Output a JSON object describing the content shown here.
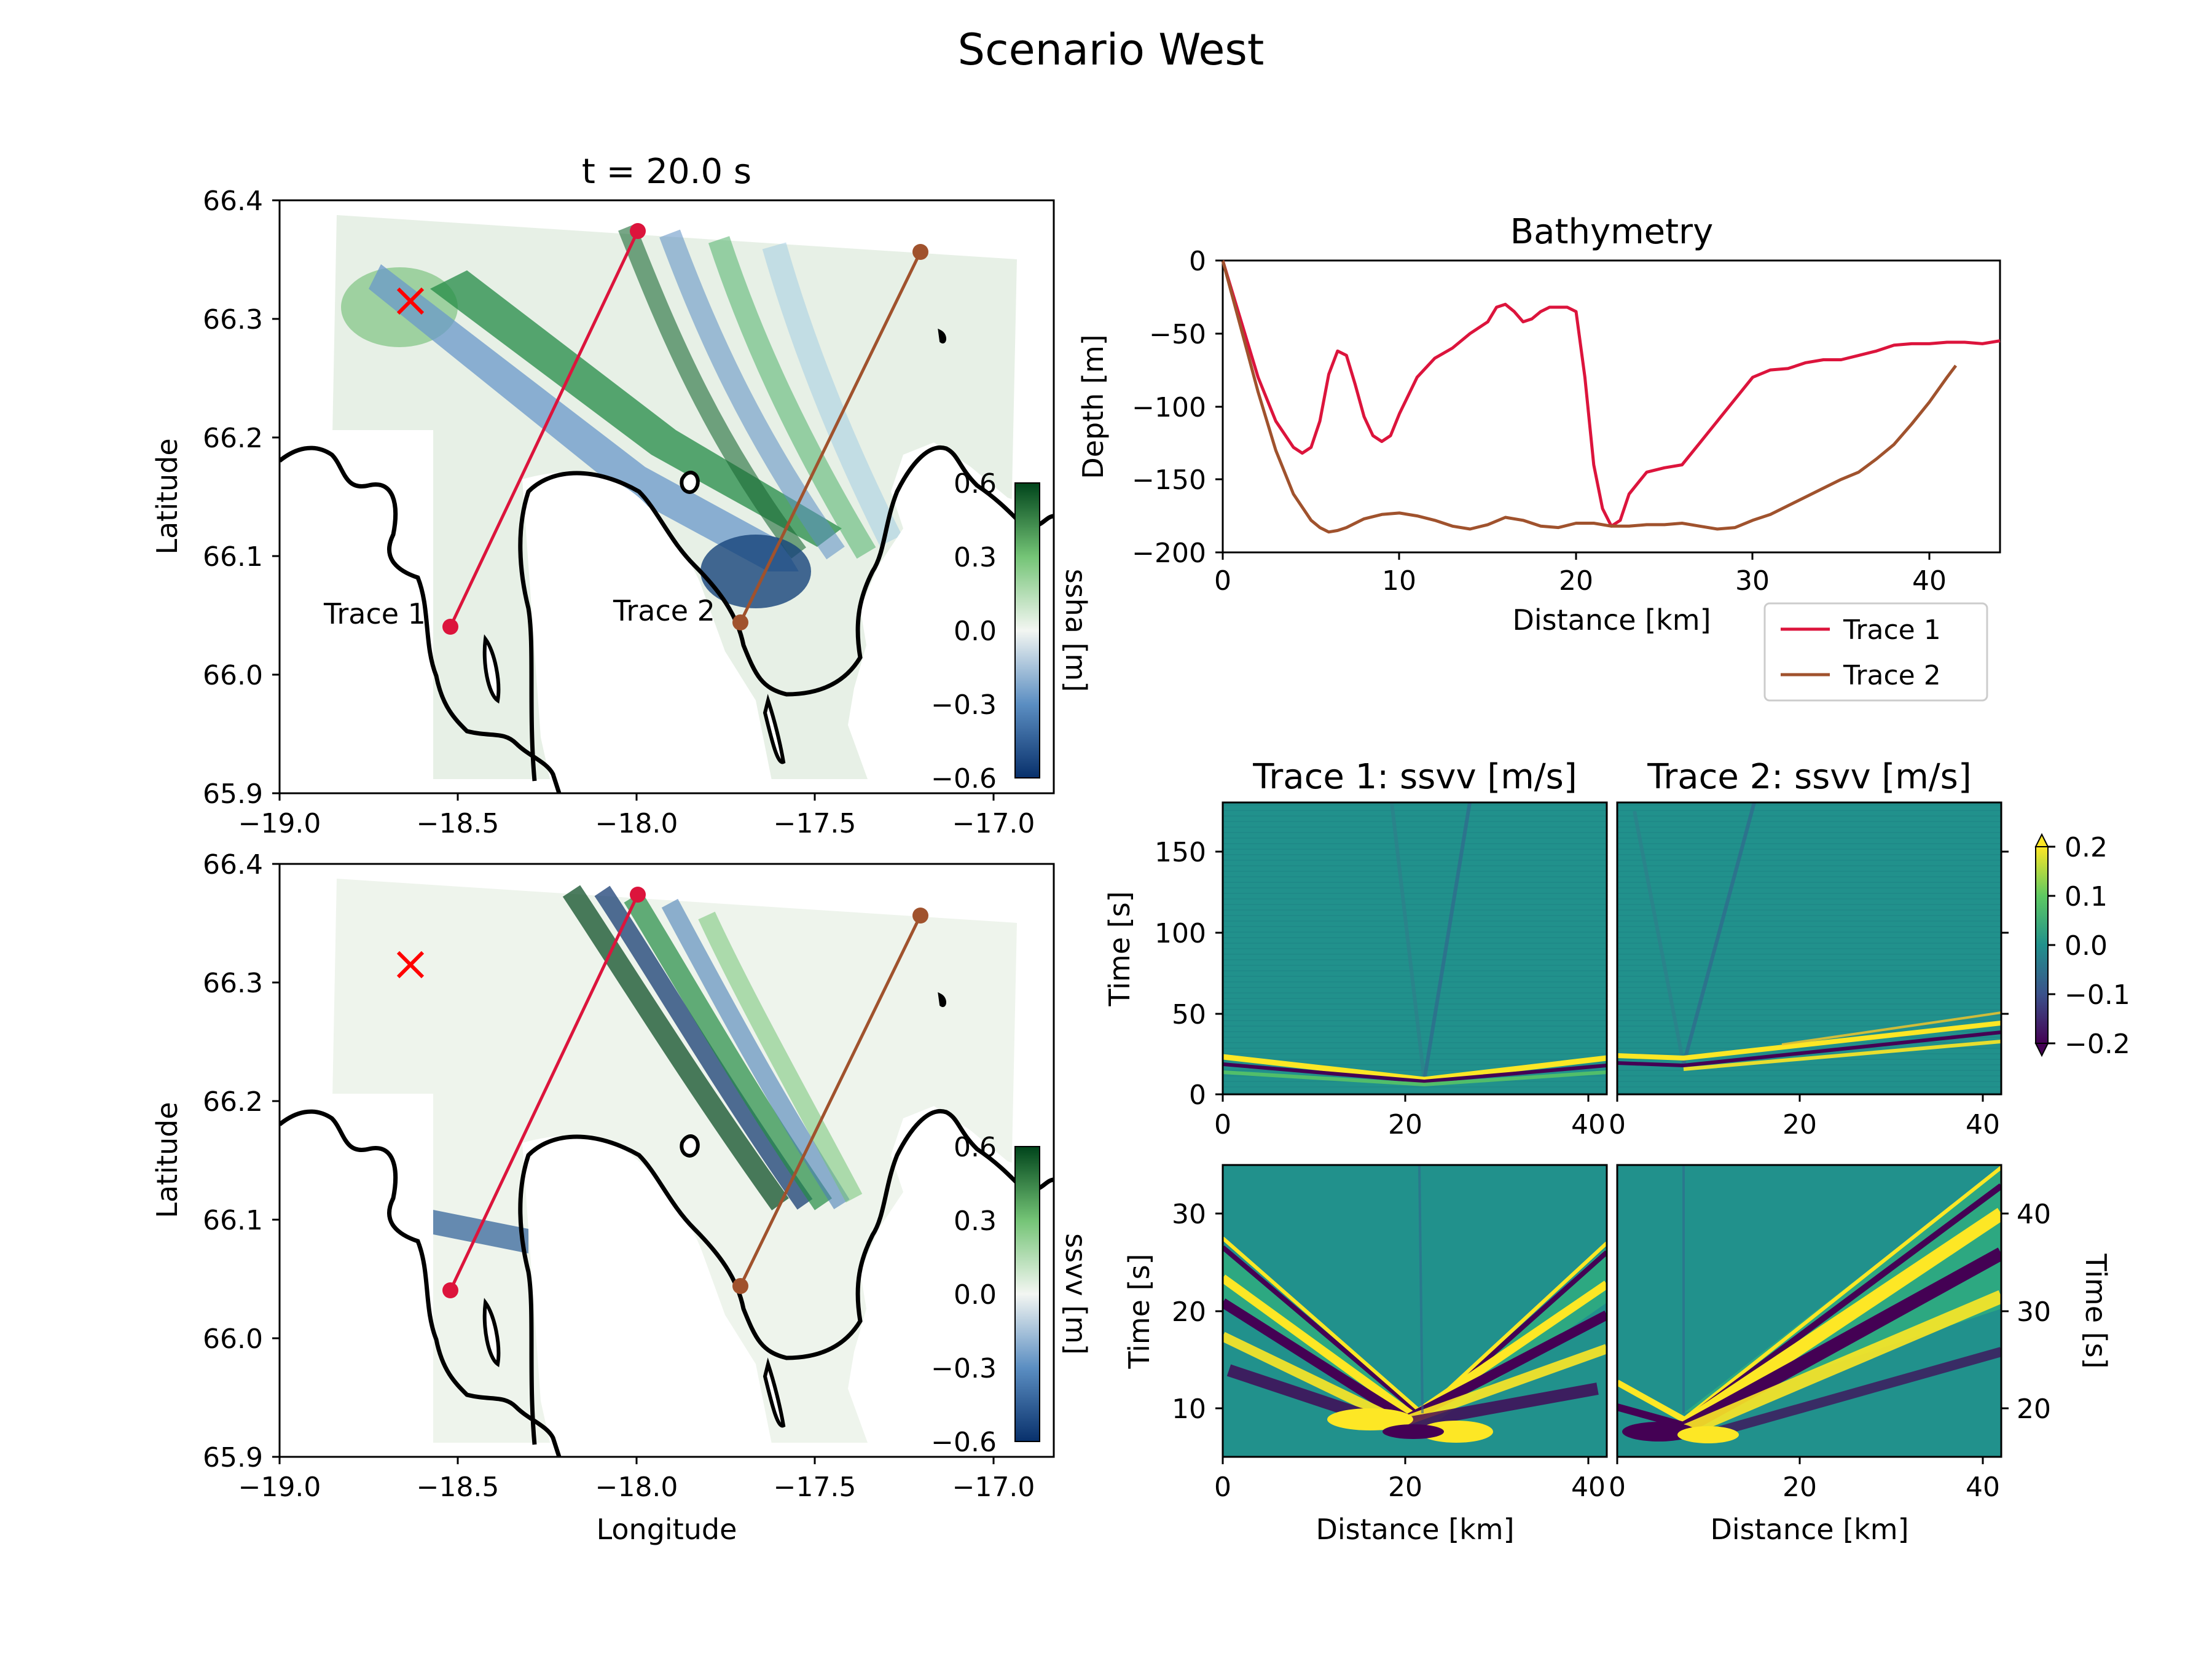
{
  "figure": {
    "suptitle": "Scenario West"
  },
  "map_top": {
    "title": "t = 20.0 s",
    "ylabel": "Latitude",
    "xlabel": "",
    "xticks": [
      "−19.0",
      "−18.5",
      "−18.0",
      "−17.5",
      "−17.0"
    ],
    "yticks": [
      "66.4",
      "66.3",
      "66.2",
      "66.1",
      "66.0",
      "65.9"
    ],
    "colorbar_label": "ssha [m]",
    "colorbar_ticks": [
      "0.6",
      "0.3",
      "0.0",
      "−0.3",
      "−0.6"
    ],
    "trace1_label": "Trace 1",
    "trace2_label": "Trace 2"
  },
  "map_bottom": {
    "ylabel": "Latitude",
    "xlabel": "Longitude",
    "xticks": [
      "−19.0",
      "−18.5",
      "−18.0",
      "−17.5",
      "−17.0"
    ],
    "yticks": [
      "66.4",
      "66.3",
      "66.2",
      "66.1",
      "66.0",
      "65.9"
    ],
    "colorbar_label": "ssvv [m]",
    "colorbar_ticks": [
      "0.6",
      "0.3",
      "0.0",
      "−0.3",
      "−0.6"
    ]
  },
  "bathy": {
    "title": "Bathymetry",
    "xlabel": "Distance [km]",
    "ylabel": "Depth [m]",
    "xticks": [
      "0",
      "10",
      "20",
      "30",
      "40"
    ],
    "yticks": [
      "0",
      "−50",
      "−100",
      "−150",
      "−200"
    ],
    "legend": [
      "Trace 1",
      "Trace 2"
    ]
  },
  "panels": {
    "title1": "Trace 1: ssvv [m/s]",
    "title2": "Trace 2: ssvv [m/s]",
    "time_label": "Time [s]",
    "distance_label": "Distance [km]",
    "top_yticks": [
      "150",
      "100",
      "50",
      "0"
    ],
    "bottom_left_yticks": [
      "30",
      "20",
      "10"
    ],
    "bottom_right_yticks": [
      "40",
      "30",
      "20"
    ],
    "xticks": [
      "0",
      "20",
      "40"
    ],
    "cbar_ticks": [
      "0.2",
      "0.1",
      "0.0",
      "−0.1",
      "−0.2"
    ]
  },
  "colors": {
    "trace1": "#dc143c",
    "trace2": "#a0522d",
    "epicenter": "#ff0000",
    "green_dark": "#00441b",
    "blue_dark": "#08306b"
  },
  "chart_data": [
    {
      "type": "line",
      "title": "Bathymetry",
      "xlabel": "Distance [km]",
      "ylabel": "Depth [m]",
      "xlim": [
        0,
        44
      ],
      "ylim": [
        -200,
        0
      ],
      "grid": false,
      "legend_position": "lower-right outside",
      "series": [
        {
          "name": "Trace 1",
          "x": [
            0,
            1,
            2,
            3,
            4,
            4.5,
            5,
            5.5,
            6,
            6.5,
            7,
            7.5,
            8,
            8.5,
            9,
            9.5,
            10,
            11,
            12,
            13,
            14,
            15,
            15.5,
            16,
            16.5,
            17,
            17.5,
            18,
            18.5,
            19,
            19.5,
            20,
            20.5,
            21,
            21.5,
            22,
            22.5,
            23,
            24,
            25,
            26,
            27,
            28,
            29,
            30,
            31,
            32,
            33,
            34,
            35,
            36,
            37,
            38,
            39,
            40,
            41,
            42,
            43,
            44
          ],
          "y": [
            0,
            -40,
            -80,
            -110,
            -128,
            -132,
            -128,
            -110,
            -78,
            -62,
            -65,
            -85,
            -107,
            -120,
            -124,
            -120,
            -105,
            -80,
            -67,
            -60,
            -50,
            -42,
            -32,
            -30,
            -35,
            -42,
            -40,
            -35,
            -32,
            -32,
            -32,
            -35,
            -80,
            -140,
            -170,
            -182,
            -178,
            -160,
            -145,
            -142,
            -140,
            -125,
            -110,
            -95,
            -80,
            -75,
            -74,
            -70,
            -68,
            -68,
            -65,
            -62,
            -58,
            -57,
            -57,
            -56,
            -56,
            -57,
            -55
          ]
        },
        {
          "name": "Trace 2",
          "x": [
            0,
            1,
            2,
            3,
            4,
            5,
            5.5,
            6,
            6.5,
            7,
            7.5,
            8,
            9,
            10,
            11,
            12,
            13,
            14,
            15,
            16,
            17,
            18,
            19,
            20,
            21,
            22,
            23,
            24,
            25,
            26,
            27,
            28,
            29,
            30,
            31,
            32,
            33,
            34,
            35,
            36,
            37,
            38,
            39,
            40,
            41,
            41.5
          ],
          "y": [
            0,
            -45,
            -90,
            -130,
            -160,
            -178,
            -183,
            -186,
            -185,
            -183,
            -180,
            -177,
            -174,
            -173,
            -175,
            -178,
            -182,
            -184,
            -181,
            -176,
            -178,
            -182,
            -183,
            -180,
            -180,
            -182,
            -182,
            -181,
            -181,
            -180,
            -182,
            -184,
            -183,
            -178,
            -174,
            -168,
            -162,
            -156,
            -150,
            -145,
            -136,
            -126,
            -112,
            -97,
            -80,
            -72
          ]
        }
      ]
    },
    {
      "type": "heatmap",
      "title": "t = 20.0 s",
      "xlabel": "",
      "ylabel": "Latitude",
      "xlim": [
        -19.0,
        -16.8
      ],
      "ylim": [
        65.9,
        66.4
      ],
      "colorbar": {
        "label": "ssha [m]",
        "range": [
          -0.6,
          0.6
        ]
      },
      "annotations": [
        "Trace 1",
        "Trace 2"
      ],
      "trace1": {
        "start": [
          -18.52,
          66.04
        ],
        "end": [
          -17.98,
          66.37
        ]
      },
      "trace2": {
        "start": [
          -17.7,
          66.045
        ],
        "end": [
          -17.16,
          66.355
        ]
      },
      "epicenter": [
        -18.63,
        66.315
      ]
    },
    {
      "type": "heatmap",
      "xlabel": "Longitude",
      "ylabel": "Latitude",
      "xlim": [
        -19.0,
        -16.8
      ],
      "ylim": [
        65.9,
        66.4
      ],
      "colorbar": {
        "label": "ssvv [m]",
        "range": [
          -0.6,
          0.6
        ]
      }
    },
    {
      "type": "heatmap",
      "title": "Trace 1: ssvv [m/s]",
      "ylabel": "Time [s]",
      "xlim": [
        0,
        42
      ],
      "ylim": [
        0,
        180
      ],
      "colorbar": {
        "range": [
          -0.2,
          0.2
        ],
        "extend": "both"
      }
    },
    {
      "type": "heatmap",
      "title": "Trace 2: ssvv [m/s]",
      "xlim": [
        0,
        42
      ],
      "ylim": [
        0,
        180
      ]
    },
    {
      "type": "heatmap",
      "xlabel": "Distance [km]",
      "ylabel": "Time [s]",
      "xlim": [
        0,
        42
      ],
      "ylim": [
        5,
        35
      ]
    },
    {
      "type": "heatmap",
      "xlabel": "Distance [km]",
      "ylabel": "Time [s]",
      "xlim": [
        0,
        42
      ],
      "ylim": [
        15,
        45
      ]
    }
  ]
}
